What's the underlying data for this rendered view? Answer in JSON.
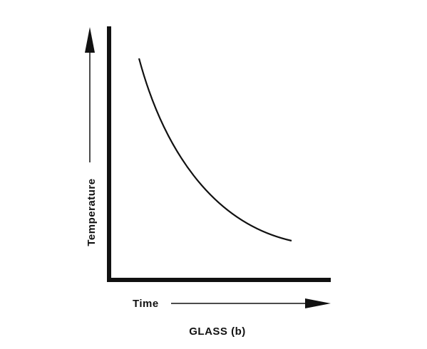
{
  "y_axis_label": "Temperature",
  "x_axis_label": "Time",
  "caption": "GLASS (b)"
}
